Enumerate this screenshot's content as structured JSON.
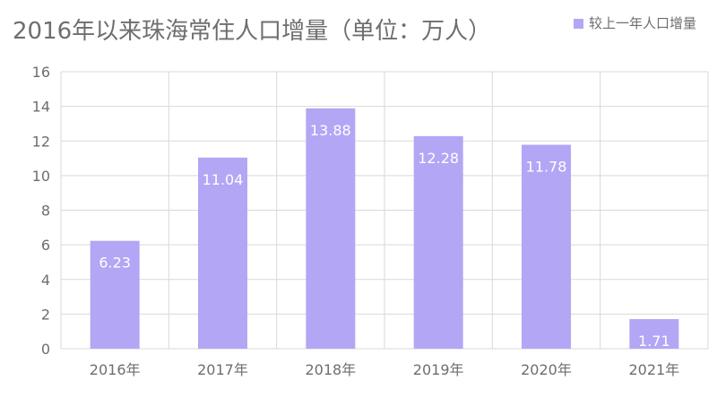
{
  "chart_data": {
    "type": "bar",
    "title": "2016年以来珠海常住人口增量（单位：万人）",
    "categories": [
      "2016年",
      "2017年",
      "2018年",
      "2019年",
      "2020年",
      "2021年"
    ],
    "series": [
      {
        "name": "较上一年人口增量",
        "values": [
          6.23,
          11.04,
          13.88,
          12.28,
          11.78,
          1.71
        ],
        "labels": [
          "6.23",
          "11.04",
          "13.88",
          "12.28",
          "11.78",
          "1.71"
        ]
      }
    ],
    "ylim": [
      0,
      16
    ],
    "yticks": [
      0,
      2,
      4,
      6,
      8,
      10,
      12,
      14,
      16
    ],
    "grid": true,
    "legend_position": "top-right",
    "colors": {
      "bar": "#b3a6f5",
      "grid": "#d9d9d9",
      "text": "#6e6e6e",
      "data_label": "#ffffff"
    }
  }
}
